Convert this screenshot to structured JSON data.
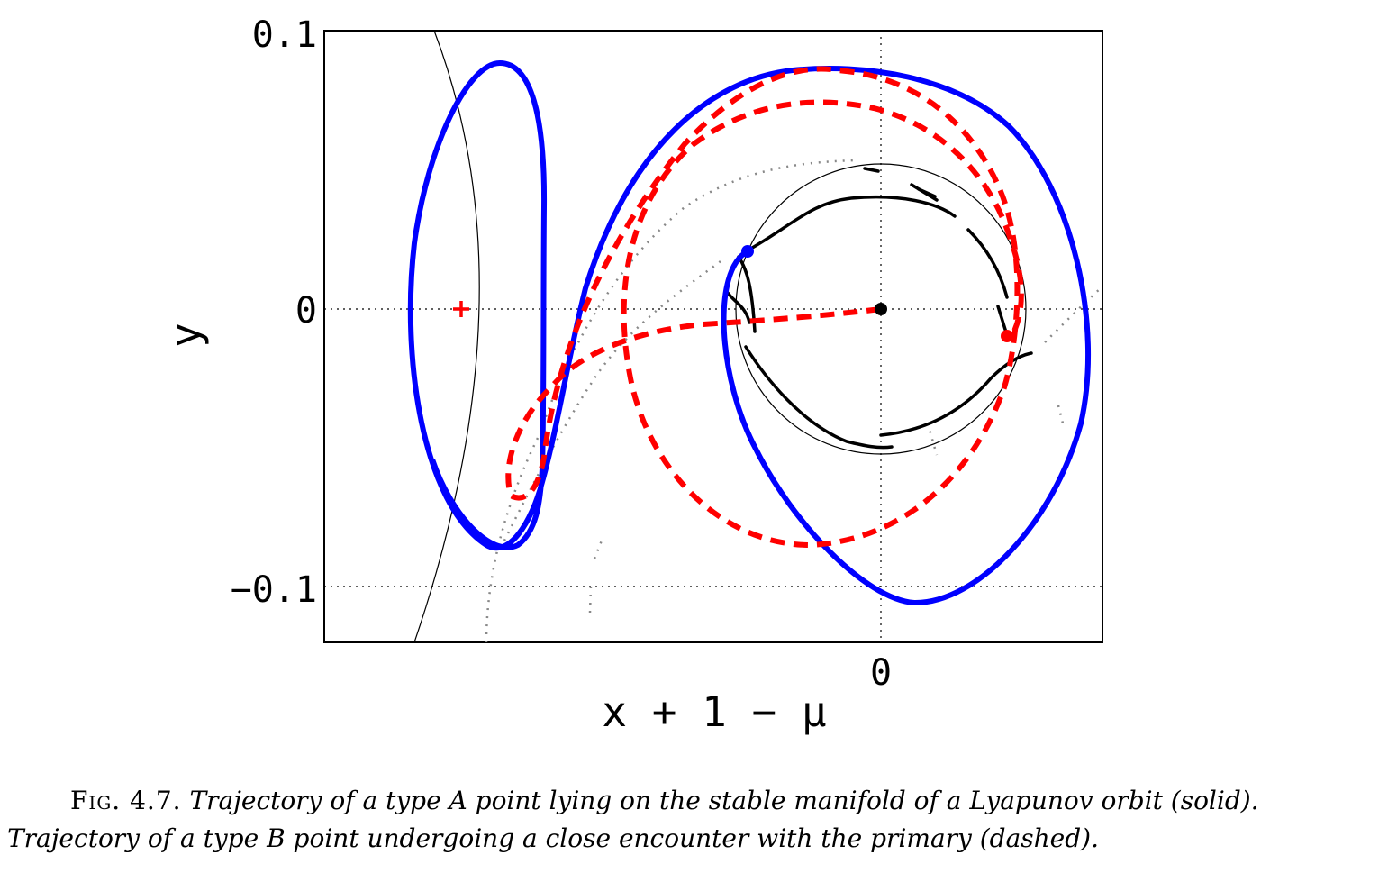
{
  "figure": {
    "axes": {
      "xlabel": "x + 1 − μ",
      "ylabel": "y",
      "ytick_labels": [
        "0.1",
        "0",
        "−0.1"
      ],
      "xtick_labels": [
        "0"
      ],
      "grid": "dotted, through labeled ticks"
    },
    "chart_data": {
      "type": "line",
      "xlabel": "x + 1 − μ",
      "ylabel": "y",
      "yticks": [
        0.1,
        0,
        -0.1
      ],
      "xticks": [
        0
      ],
      "xlim": [
        -0.2,
        0.08
      ],
      "ylim": [
        -0.12,
        0.1
      ],
      "series": [
        {
          "style": "solid",
          "color": "#0000ff",
          "x": [
            -0.047,
            -0.075,
            -0.13,
            -0.14,
            -0.17,
            -0.14,
            -0.122,
            -0.122,
            -0.123,
            -0.11,
            -0.06,
            -0.014,
            0.04,
            0.075,
            0.073,
            0.04,
            0.013,
            -0.04,
            -0.055,
            -0.05,
            -0.046
          ],
          "y": [
            0.022,
            0.01,
            0.042,
            0.088,
            0.0,
            -0.085,
            -0.07,
            -0.02,
            0.06,
            0.0,
            0.06,
            0.088,
            0.075,
            -0.01,
            -0.06,
            -0.1,
            -0.106,
            -0.08,
            -0.015,
            0.015,
            0.021
          ]
        },
        {
          "style": "dashed",
          "color": "#ff0000",
          "x": [
            0.0,
            -0.05,
            -0.1,
            -0.115,
            -0.13,
            -0.135,
            -0.125,
            -0.11,
            -0.06,
            -0.03,
            0.015,
            0.045,
            0.048,
            0.03,
            -0.03,
            -0.08,
            -0.092,
            -0.08,
            -0.04,
            0.0,
            0.03,
            0.04,
            0.048,
            0.046
          ],
          "y": [
            0.0,
            -0.006,
            -0.018,
            -0.026,
            -0.04,
            -0.058,
            -0.068,
            -0.05,
            0.06,
            0.087,
            0.08,
            0.05,
            0.01,
            -0.045,
            -0.085,
            -0.06,
            0.0,
            0.055,
            0.075,
            0.072,
            0.055,
            0.04,
            0.0,
            -0.01
          ]
        }
      ],
      "markers": [
        {
          "x": -0.15,
          "y": 0.0,
          "symbol": "+",
          "color": "#ff0000"
        },
        {
          "x": 0.0,
          "y": 0.0,
          "symbol": "dot",
          "color": "#000000"
        },
        {
          "x": -0.048,
          "y": 0.021,
          "symbol": "dot",
          "color": "#0000ff"
        },
        {
          "x": 0.045,
          "y": -0.01,
          "symbol": "dot",
          "color": "#ff0000"
        }
      ],
      "circle": {
        "cx": 0.0,
        "cy": 0.0,
        "r": 0.052
      }
    }
  },
  "caption": {
    "label": "Fig. 4.7.",
    "text": "Trajectory of a type A point lying on the stable manifold of a Lyapunov orbit (solid). Trajectory of a type B point undergoing a close encounter with the primary (dashed)."
  }
}
